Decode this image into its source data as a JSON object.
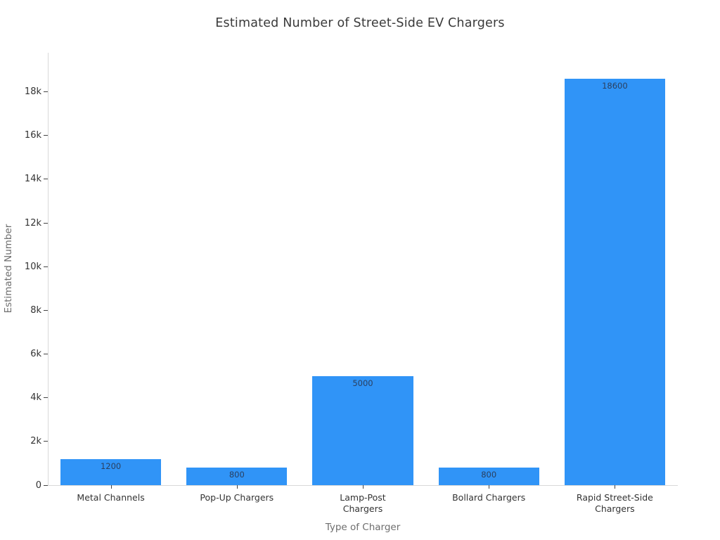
{
  "title": "Estimated Number of Street-Side EV Chargers",
  "colors": {
    "bar": "#3094f7",
    "axis_line": "#d9d9d9",
    "tick_mark": "#444444",
    "tick_text": "#333333",
    "axis_title_text": "#6e6e6e",
    "value_label_text": "#2a3f5f",
    "title_text": "#3a3a3a",
    "background": "#ffffff"
  },
  "chart_data": {
    "type": "bar",
    "title": "Estimated Number of Street-Side EV Chargers",
    "xlabel": "Type of Charger",
    "ylabel": "Estimated Number",
    "categories": [
      "Metal Channels",
      "Pop-Up Chargers",
      "Lamp-Post\nChargers",
      "Bollard Chargers",
      "Rapid Street-Side\nChargers"
    ],
    "values": [
      1200,
      800,
      5000,
      800,
      18600
    ],
    "value_labels": [
      "1200",
      "800",
      "5000",
      "800",
      "18600"
    ],
    "ylim": [
      0,
      19790
    ],
    "yticks": [
      0,
      2000,
      4000,
      6000,
      8000,
      10000,
      12000,
      14000,
      16000,
      18000
    ],
    "ytick_labels": [
      "0",
      "2k",
      "4k",
      "6k",
      "8k",
      "10k",
      "12k",
      "14k",
      "16k",
      "18k"
    ],
    "grid": false,
    "legend": null,
    "bar_label_position": "inside-top"
  }
}
